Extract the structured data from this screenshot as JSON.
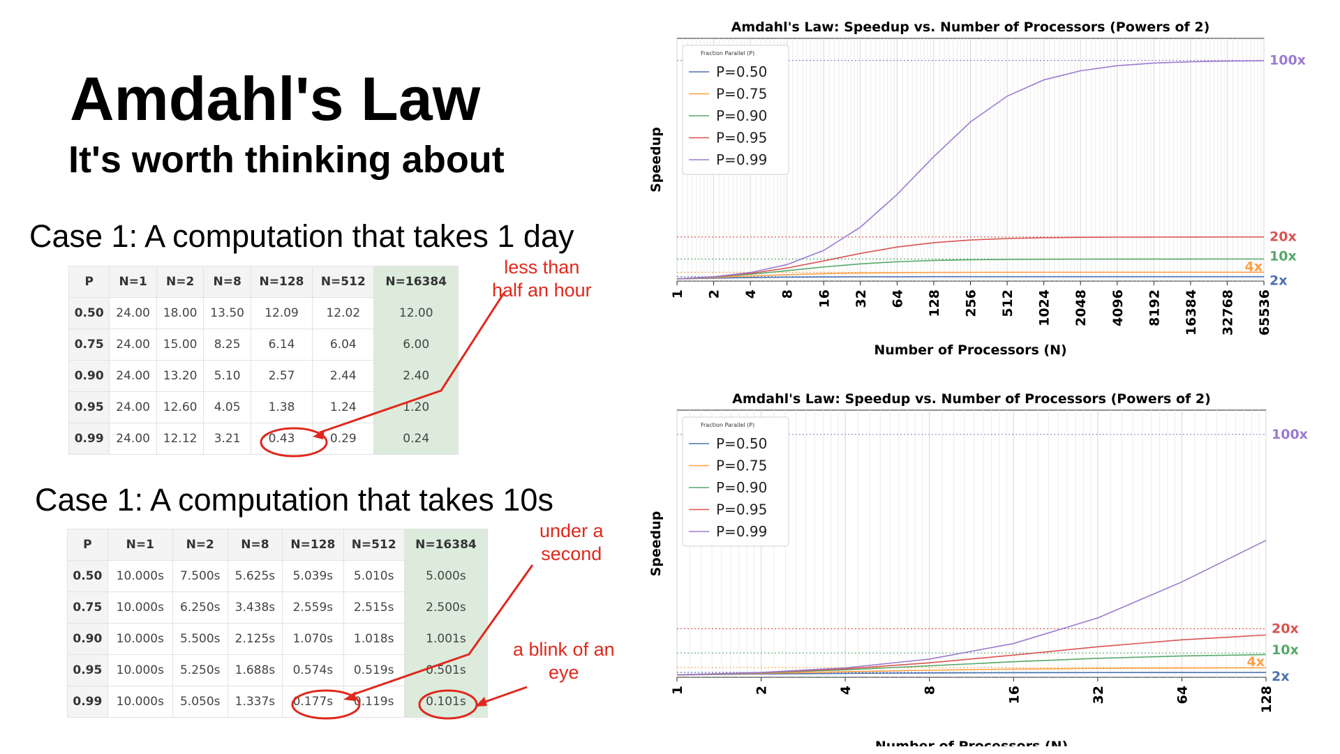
{
  "slide": {
    "title": "Amdahl's Law",
    "subtitle": "It's worth thinking about"
  },
  "case_a": {
    "heading": "Case 1: A computation that takes 1 day",
    "columns": [
      "P",
      "N=1",
      "N=2",
      "N=8",
      "N=128",
      "N=512",
      "N=16384"
    ],
    "rows": [
      [
        "0.50",
        "24.00",
        "18.00",
        "13.50",
        "12.09",
        "12.02",
        "12.00"
      ],
      [
        "0.75",
        "24.00",
        "15.00",
        "8.25",
        "6.14",
        "6.04",
        "6.00"
      ],
      [
        "0.90",
        "24.00",
        "13.20",
        "5.10",
        "2.57",
        "2.44",
        "2.40"
      ],
      [
        "0.95",
        "24.00",
        "12.60",
        "4.05",
        "1.38",
        "1.24",
        "1.20"
      ],
      [
        "0.99",
        "24.00",
        "12.12",
        "3.21",
        "0.43",
        "0.29",
        "0.24"
      ]
    ],
    "annotation": [
      "less than",
      "half an hour"
    ]
  },
  "case_b": {
    "heading": "Case 1: A computation that takes 10s",
    "columns": [
      "P",
      "N=1",
      "N=2",
      "N=8",
      "N=128",
      "N=512",
      "N=16384"
    ],
    "rows": [
      [
        "0.50",
        "10.000s",
        "7.500s",
        "5.625s",
        "5.039s",
        "5.010s",
        "5.000s"
      ],
      [
        "0.75",
        "10.000s",
        "6.250s",
        "3.438s",
        "2.559s",
        "2.515s",
        "2.500s"
      ],
      [
        "0.90",
        "10.000s",
        "5.500s",
        "2.125s",
        "1.070s",
        "1.018s",
        "1.001s"
      ],
      [
        "0.95",
        "10.000s",
        "5.250s",
        "1.688s",
        "0.574s",
        "0.519s",
        "0.501s"
      ],
      [
        "0.99",
        "10.000s",
        "5.050s",
        "1.337s",
        "0.177s",
        "0.119s",
        "0.101s"
      ]
    ],
    "annotation_1": [
      "under a",
      "second"
    ],
    "annotation_2": [
      "a blink of an",
      "eye"
    ]
  },
  "colors": {
    "annotation": "#e0281c",
    "highlight_column": "#dcebdc",
    "series": [
      "#4c72b0",
      "#ff9f43",
      "#55a868",
      "#d9534f",
      "#9b7ad0"
    ]
  },
  "chart_data": [
    {
      "type": "line",
      "title": "Amdahl's Law: Speedup vs. Number of Processors (Powers of 2)",
      "xlabel": "Number of Processors (N)",
      "ylabel": "Speedup",
      "x_scale": "log2",
      "x": [
        1,
        2,
        4,
        8,
        16,
        32,
        64,
        128,
        256,
        512,
        1024,
        2048,
        4096,
        8192,
        16384,
        32768,
        65536
      ],
      "ylim": [
        0,
        110
      ],
      "grid": true,
      "legend_title": "Fraction Parallel (P)",
      "legend_position": "top-left",
      "series": [
        {
          "name": "P=0.50",
          "values": [
            1,
            1.33,
            1.6,
            1.78,
            1.88,
            1.94,
            1.97,
            1.98,
            1.99,
            2.0,
            2.0,
            2.0,
            2.0,
            2.0,
            2.0,
            2.0,
            2.0
          ]
        },
        {
          "name": "P=0.75",
          "values": [
            1,
            1.6,
            2.29,
            2.91,
            3.37,
            3.66,
            3.82,
            3.91,
            3.95,
            3.98,
            3.99,
            3.99,
            4.0,
            4.0,
            4.0,
            4.0,
            4.0
          ]
        },
        {
          "name": "P=0.90",
          "values": [
            1,
            1.82,
            3.08,
            4.71,
            6.4,
            7.8,
            8.77,
            9.34,
            9.66,
            9.83,
            9.91,
            9.96,
            9.98,
            9.99,
            9.99,
            10.0,
            10.0
          ]
        },
        {
          "name": "P=0.95",
          "values": [
            1,
            1.9,
            3.48,
            5.93,
            9.14,
            12.55,
            15.42,
            17.41,
            18.62,
            19.28,
            19.64,
            19.82,
            19.91,
            19.95,
            19.98,
            19.99,
            19.99
          ]
        },
        {
          "name": "P=0.99",
          "values": [
            1,
            1.98,
            3.88,
            7.48,
            13.91,
            24.43,
            39.26,
            56.39,
            72.11,
            83.8,
            91.18,
            95.3,
            97.6,
            98.79,
            99.39,
            99.7,
            99.85
          ]
        }
      ],
      "asymptotes": [
        {
          "value": 100,
          "label": "100x"
        },
        {
          "value": 20,
          "label": "20x"
        },
        {
          "value": 10,
          "label": "10x"
        },
        {
          "value": 4,
          "label": "4x"
        },
        {
          "value": 2,
          "label": "2x"
        }
      ]
    },
    {
      "type": "line",
      "title": "Amdahl's Law: Speedup vs. Number of Processors (Powers of 2)",
      "xlabel": "Number of Processors (N)",
      "ylabel": "Speedup",
      "x_scale": "log2",
      "x": [
        1,
        2,
        4,
        8,
        16,
        32,
        64,
        128
      ],
      "ylim": [
        0,
        110
      ],
      "grid": true,
      "legend_title": "Fraction Parallel (P)",
      "legend_position": "top-left",
      "series": [
        {
          "name": "P=0.50",
          "values": [
            1,
            1.33,
            1.6,
            1.78,
            1.88,
            1.94,
            1.97,
            1.98
          ]
        },
        {
          "name": "P=0.75",
          "values": [
            1,
            1.6,
            2.29,
            2.91,
            3.37,
            3.66,
            3.82,
            3.91
          ]
        },
        {
          "name": "P=0.90",
          "values": [
            1,
            1.82,
            3.08,
            4.71,
            6.4,
            7.8,
            8.77,
            9.34
          ]
        },
        {
          "name": "P=0.95",
          "values": [
            1,
            1.9,
            3.48,
            5.93,
            9.14,
            12.55,
            15.42,
            17.41
          ]
        },
        {
          "name": "P=0.99",
          "values": [
            1,
            1.98,
            3.88,
            7.48,
            13.91,
            24.43,
            39.26,
            56.39
          ]
        }
      ],
      "asymptotes": [
        {
          "value": 100,
          "label": "100x"
        },
        {
          "value": 20,
          "label": "20x"
        },
        {
          "value": 10,
          "label": "10x"
        },
        {
          "value": 4,
          "label": "4x"
        },
        {
          "value": 2,
          "label": "2x"
        }
      ]
    }
  ]
}
